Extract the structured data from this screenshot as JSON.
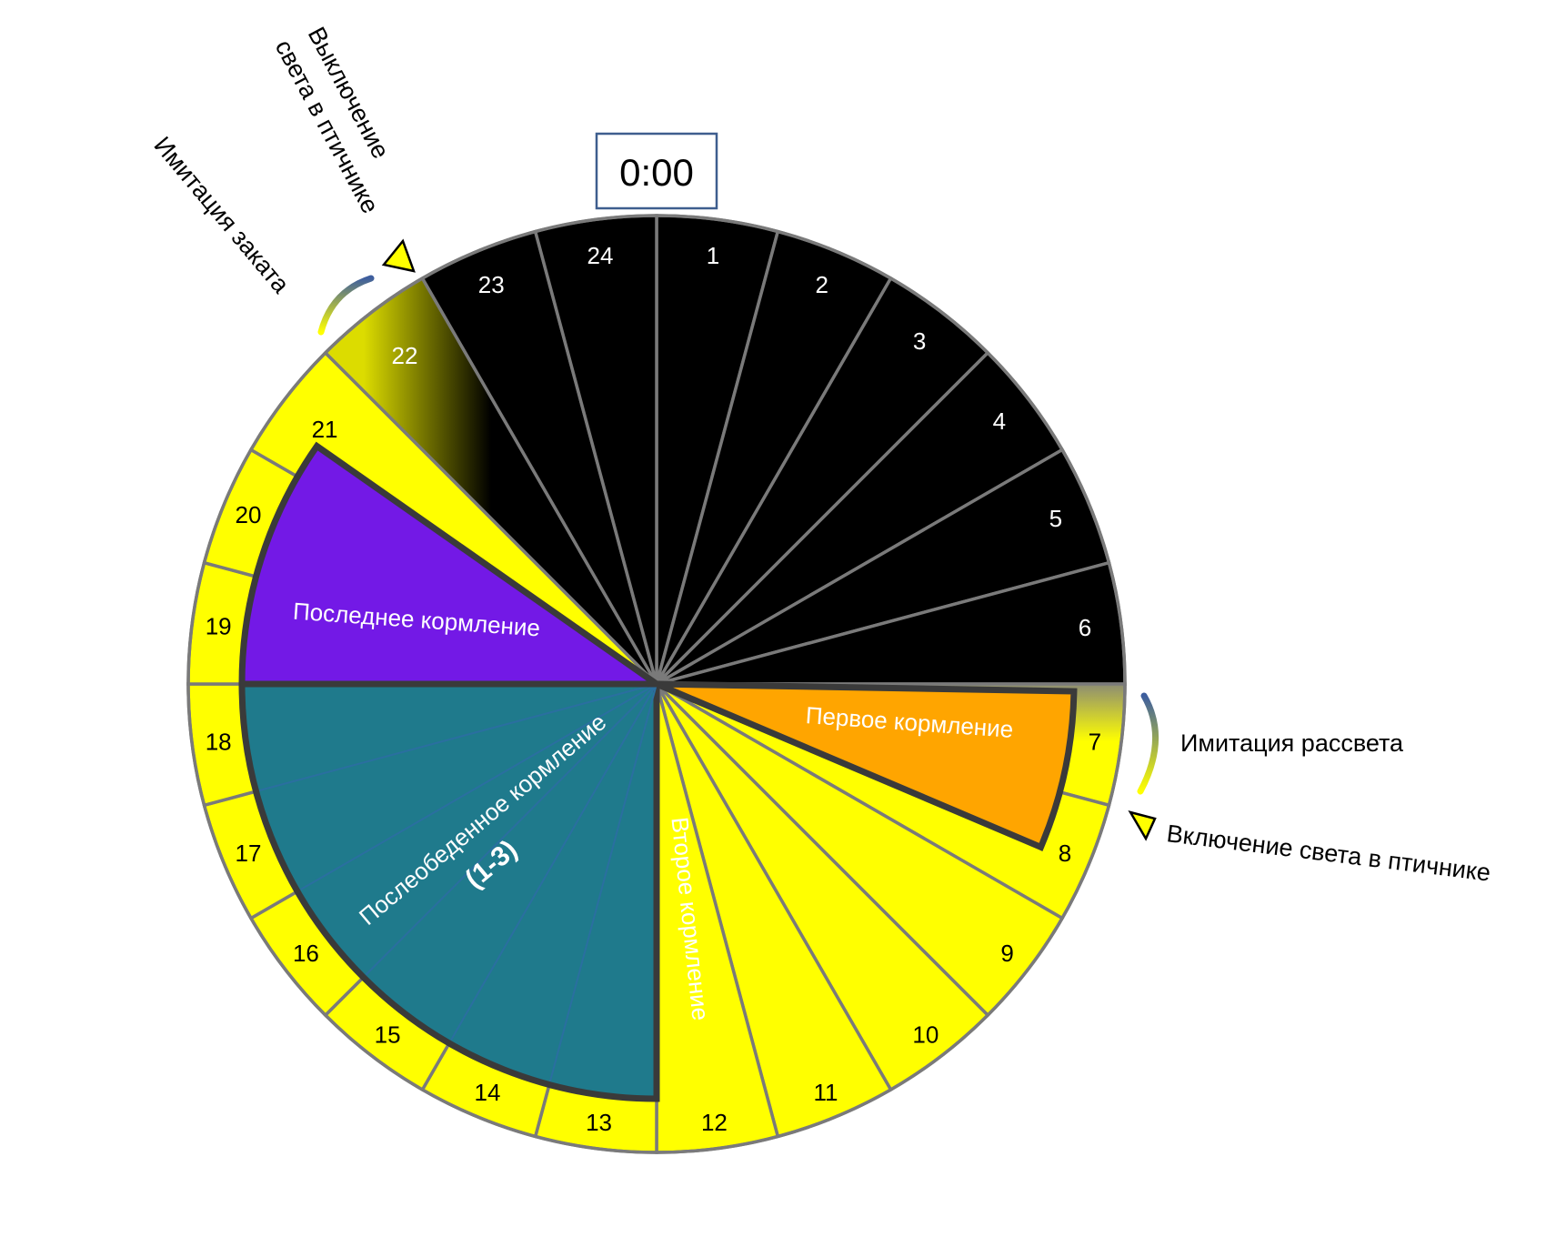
{
  "clock_label": "0:00",
  "hours": [
    "1",
    "2",
    "3",
    "4",
    "5",
    "6",
    "7",
    "8",
    "9",
    "10",
    "11",
    "12",
    "13",
    "14",
    "15",
    "16",
    "17",
    "18",
    "19",
    "20",
    "21",
    "22",
    "23",
    "24"
  ],
  "feedings": {
    "first": "Первое кормление",
    "second": "Второе кормление",
    "afternoon": "Послеобеденное кормление",
    "afternoon_count": "(1-3)",
    "last": "Последнее кормление"
  },
  "annotations": {
    "dawn": "Имитация рассвета",
    "light_on": "Включение света в птичнике",
    "sunset": "Имитация заката",
    "light_off_line1": "Выключение",
    "light_off_line2": "света в птичнике"
  },
  "colors": {
    "night": "#000000",
    "day": "#ffff00",
    "first_feeding": "#ffa500",
    "second_feeding": "#1a7a12",
    "afternoon_feeding": "#1f7a8c",
    "last_feeding": "#7319e6",
    "divider": "#7a7a7a",
    "feeding_border": "#3a3a3a",
    "transition_arc": "#3e5e9e"
  }
}
